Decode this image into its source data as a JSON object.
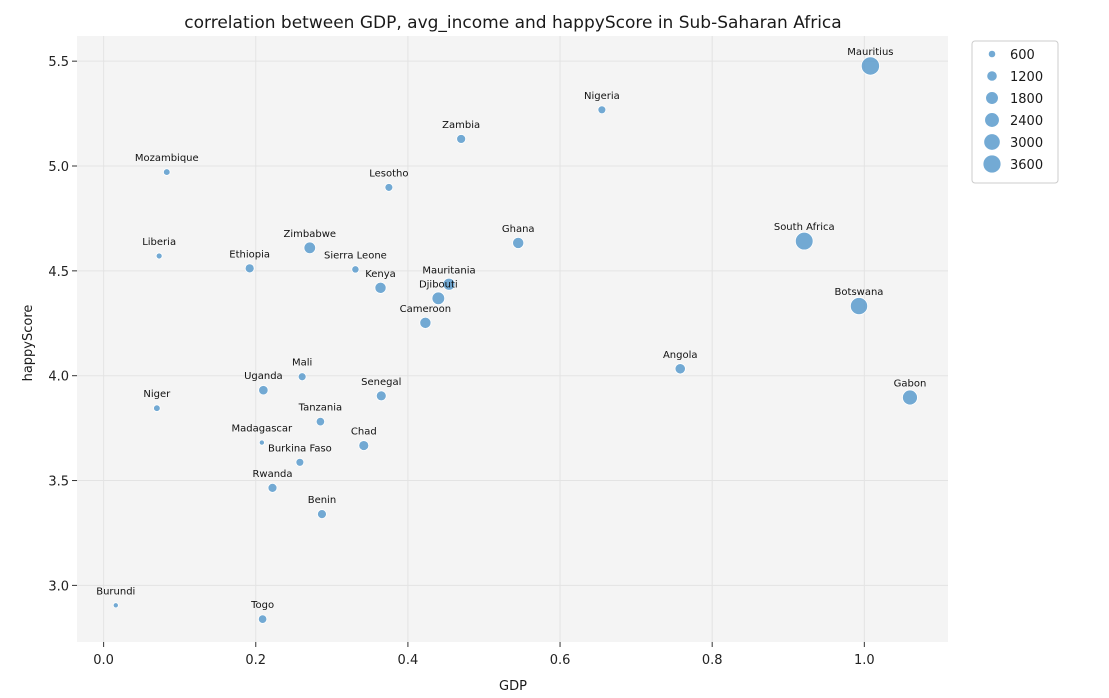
{
  "chart_data": {
    "type": "scatter",
    "title": "correlation between GDP, avg_income and happyScore in Sub-Saharan Africa",
    "xlabel": "GDP",
    "ylabel": "happyScore",
    "xlim": [
      -0.035,
      1.11
    ],
    "ylim": [
      2.73,
      5.62
    ],
    "xticks": [
      "0.0",
      "0.2",
      "0.4",
      "0.6",
      "0.8",
      "1.0"
    ],
    "yticks": [
      "3.0",
      "3.5",
      "4.0",
      "4.5",
      "5.0",
      "5.5"
    ],
    "grid": true,
    "point_color": "#5b9bcc",
    "background_color": "#f4f4f4",
    "size_variable": "avg_income",
    "legend": {
      "placement": "top-right outside",
      "entries": [
        {
          "label": "600",
          "size": 600
        },
        {
          "label": "1200",
          "size": 1200
        },
        {
          "label": "1800",
          "size": 1800
        },
        {
          "label": "2400",
          "size": 2400
        },
        {
          "label": "3000",
          "size": 3000
        },
        {
          "label": "3600",
          "size": 3600
        }
      ]
    },
    "points": [
      {
        "label": "Mauritius",
        "x": 1.008,
        "y": 5.477,
        "size": 3700
      },
      {
        "label": "Nigeria",
        "x": 0.655,
        "y": 5.268,
        "size": 700
      },
      {
        "label": "Zambia",
        "x": 0.47,
        "y": 5.129,
        "size": 900
      },
      {
        "label": "Mozambique",
        "x": 0.083,
        "y": 4.971,
        "size": 500
      },
      {
        "label": "Lesotho",
        "x": 0.375,
        "y": 4.898,
        "size": 700
      },
      {
        "label": "Ghana",
        "x": 0.545,
        "y": 4.633,
        "size": 1400
      },
      {
        "label": "South Africa",
        "x": 0.921,
        "y": 4.642,
        "size": 3500
      },
      {
        "label": "Zimbabwe",
        "x": 0.271,
        "y": 4.61,
        "size": 1500
      },
      {
        "label": "Liberia",
        "x": 0.073,
        "y": 4.571,
        "size": 400
      },
      {
        "label": "Ethiopia",
        "x": 0.192,
        "y": 4.512,
        "size": 900
      },
      {
        "label": "Sierra Leone",
        "x": 0.331,
        "y": 4.507,
        "size": 600
      },
      {
        "label": "Mauritania",
        "x": 0.454,
        "y": 4.436,
        "size": 1600
      },
      {
        "label": "Kenya",
        "x": 0.364,
        "y": 4.419,
        "size": 1400
      },
      {
        "label": "Djibouti",
        "x": 0.44,
        "y": 4.369,
        "size": 1800
      },
      {
        "label": "Botswana",
        "x": 0.993,
        "y": 4.332,
        "size": 3300
      },
      {
        "label": "Cameroon",
        "x": 0.423,
        "y": 4.252,
        "size": 1400
      },
      {
        "label": "Angola",
        "x": 0.758,
        "y": 4.033,
        "size": 1200
      },
      {
        "label": "Mali",
        "x": 0.261,
        "y": 3.995,
        "size": 700
      },
      {
        "label": "Uganda",
        "x": 0.21,
        "y": 3.931,
        "size": 1000
      },
      {
        "label": "Senegal",
        "x": 0.365,
        "y": 3.904,
        "size": 1100
      },
      {
        "label": "Gabon",
        "x": 1.06,
        "y": 3.896,
        "size": 2500
      },
      {
        "label": "Niger",
        "x": 0.07,
        "y": 3.845,
        "size": 500
      },
      {
        "label": "Tanzania",
        "x": 0.285,
        "y": 3.781,
        "size": 800
      },
      {
        "label": "Madagascar",
        "x": 0.208,
        "y": 3.681,
        "size": 300
      },
      {
        "label": "Chad",
        "x": 0.342,
        "y": 3.667,
        "size": 1100
      },
      {
        "label": "Burkina Faso",
        "x": 0.258,
        "y": 3.587,
        "size": 700
      },
      {
        "label": "Rwanda",
        "x": 0.222,
        "y": 3.465,
        "size": 900
      },
      {
        "label": "Benin",
        "x": 0.287,
        "y": 3.34,
        "size": 900
      },
      {
        "label": "Burundi",
        "x": 0.016,
        "y": 2.905,
        "size": 300
      },
      {
        "label": "Togo",
        "x": 0.209,
        "y": 2.839,
        "size": 800
      }
    ]
  }
}
